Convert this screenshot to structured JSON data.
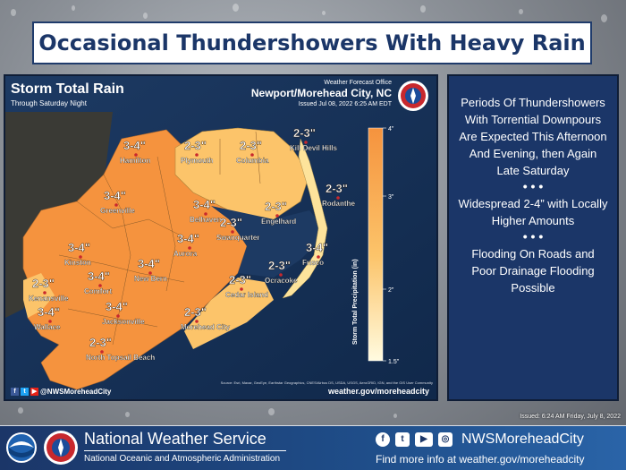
{
  "banner": {
    "title": "Occasional Thundershowers With Heavy Rain"
  },
  "map": {
    "title": "Storm Total Rain",
    "subtitle": "Through Saturday Night",
    "office_label": "Weather Forecast Office",
    "office_city": "Newport/Morehead City, NC",
    "issued": "Issued Jul 08, 2022 6:25 AM EDT",
    "social_handle": "@NWSMoreheadCity",
    "website": "weather.gov/moreheadcity",
    "credit": "Source: Esri, Maxar, GeoEye, Earthstar Geographics, CNES/Airbus DS, USDA, USGS, AeroGRID, IGN, and the GIS User Community",
    "colors": {
      "heavy": "#f5933e",
      "moderate": "#fcc46a",
      "light": "#fde39b"
    },
    "colorbar": {
      "title": "Storm Total Precipitation (in)",
      "ticks": [
        "4\"",
        "3\"",
        "2\"",
        "1.5\""
      ]
    },
    "cities": [
      {
        "name": "Hamilton",
        "amount": "3-4\""
      },
      {
        "name": "Plymouth",
        "amount": "2-3\""
      },
      {
        "name": "Columbia",
        "amount": "2-3\""
      },
      {
        "name": "Kill Devil Hills",
        "amount": "2-3\""
      },
      {
        "name": "Greenville",
        "amount": "3-4\""
      },
      {
        "name": "Belhaven",
        "amount": "3-4\""
      },
      {
        "name": "Engelhard",
        "amount": "2-3\""
      },
      {
        "name": "Rodanthe",
        "amount": "2-3\""
      },
      {
        "name": "Swanquarter",
        "amount": "2-3\""
      },
      {
        "name": "Aurora",
        "amount": "3-4\""
      },
      {
        "name": "Kinston",
        "amount": "3-4\""
      },
      {
        "name": "Frisco",
        "amount": "3-4\""
      },
      {
        "name": "New Bern",
        "amount": "3-4\""
      },
      {
        "name": "Ocracoke",
        "amount": "2-3\""
      },
      {
        "name": "Comfort",
        "amount": "3-4\""
      },
      {
        "name": "Cedar Island",
        "amount": "2-3\""
      },
      {
        "name": "Kenansville",
        "amount": "2-3\""
      },
      {
        "name": "Jacksonville",
        "amount": "3-4\""
      },
      {
        "name": "Wallace",
        "amount": "3-4\""
      },
      {
        "name": "Morehead City",
        "amount": "2-3\""
      },
      {
        "name": "North Topsail Beach",
        "amount": "2-3\""
      }
    ]
  },
  "info": {
    "line1": "Periods Of Thundershowers With Torrential Downpours Are Expected This Afternoon And Evening, then Again Late Saturday",
    "sep1": "• • •",
    "line2": "Widespread 2-4” with Locally Higher Amounts",
    "sep2": "• • •",
    "line3": "Flooding On Roads and Poor Drainage Flooding Possible"
  },
  "issued_note": "Issued: 6:24 AM Friday, July 8, 2022",
  "footer": {
    "org_name": "National Weather Service",
    "org_sub": "National Oceanic and Atmospheric Administration",
    "handle": "NWSMoreheadCity",
    "more_info": "Find more info at weather.gov/moreheadcity",
    "social": {
      "facebook": "f",
      "twitter": "t",
      "youtube": "▶",
      "instagram": "◎"
    }
  }
}
